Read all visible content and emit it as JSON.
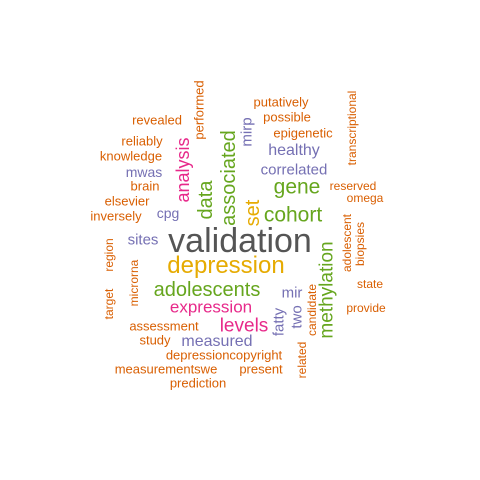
{
  "palette": {
    "orange": "#d95f02",
    "purple": "#7570b3",
    "green": "#66a61e",
    "magenta": "#e7298a",
    "gold": "#e6ab02",
    "gray": "#555555"
  },
  "words": [
    {
      "text": "validation",
      "color": "gray"
    },
    {
      "text": "depression",
      "color": "gold"
    },
    {
      "text": "adolescents",
      "color": "green"
    },
    {
      "text": "expression",
      "color": "magenta"
    },
    {
      "text": "levels",
      "color": "magenta"
    },
    {
      "text": "measured",
      "color": "purple"
    },
    {
      "text": "cohort",
      "color": "green"
    },
    {
      "text": "gene",
      "color": "green"
    },
    {
      "text": "set",
      "color": "gold"
    },
    {
      "text": "associated",
      "color": "green"
    },
    {
      "text": "data",
      "color": "green"
    },
    {
      "text": "analysis",
      "color": "magenta"
    },
    {
      "text": "methylation",
      "color": "green"
    },
    {
      "text": "healthy",
      "color": "purple"
    },
    {
      "text": "correlated",
      "color": "purple"
    },
    {
      "text": "mirp",
      "color": "purple"
    },
    {
      "text": "sites",
      "color": "purple"
    },
    {
      "text": "cpg",
      "color": "purple"
    },
    {
      "text": "mwas",
      "color": "purple"
    },
    {
      "text": "mir",
      "color": "purple"
    },
    {
      "text": "two",
      "color": "purple"
    },
    {
      "text": "fatty",
      "color": "purple"
    },
    {
      "text": "putatively",
      "color": "orange"
    },
    {
      "text": "possible",
      "color": "orange"
    },
    {
      "text": "epigenetic",
      "color": "orange"
    },
    {
      "text": "transcriptional",
      "color": "orange"
    },
    {
      "text": "revealed",
      "color": "orange"
    },
    {
      "text": "performed",
      "color": "orange"
    },
    {
      "text": "reliably",
      "color": "orange"
    },
    {
      "text": "knowledge",
      "color": "orange"
    },
    {
      "text": "brain",
      "color": "orange"
    },
    {
      "text": "elsevier",
      "color": "orange"
    },
    {
      "text": "inversely",
      "color": "orange"
    },
    {
      "text": "reserved",
      "color": "orange"
    },
    {
      "text": "omega",
      "color": "orange"
    },
    {
      "text": "adolescent",
      "color": "orange"
    },
    {
      "text": "biopsies",
      "color": "orange"
    },
    {
      "text": "state",
      "color": "orange"
    },
    {
      "text": "provide",
      "color": "orange"
    },
    {
      "text": "candidate",
      "color": "orange"
    },
    {
      "text": "related",
      "color": "orange"
    },
    {
      "text": "target",
      "color": "orange"
    },
    {
      "text": "region",
      "color": "orange"
    },
    {
      "text": "microrna",
      "color": "orange"
    },
    {
      "text": "assessment",
      "color": "orange"
    },
    {
      "text": "study",
      "color": "orange"
    },
    {
      "text": "depressioncopyright",
      "color": "orange"
    },
    {
      "text": "measurementswe",
      "color": "orange"
    },
    {
      "text": "present",
      "color": "orange"
    },
    {
      "text": "prediction",
      "color": "orange"
    }
  ]
}
